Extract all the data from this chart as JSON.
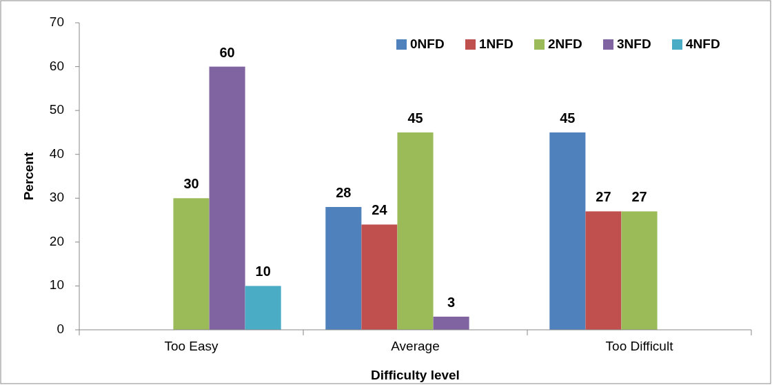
{
  "chart_data": {
    "type": "bar",
    "xlabel": "Difficulty level",
    "ylabel": "Percent",
    "categories": [
      "Too Easy",
      "Average",
      "Too Difficult"
    ],
    "series": [
      {
        "name": "0NFD",
        "color": "#4f81bd",
        "values": [
          null,
          28,
          45
        ]
      },
      {
        "name": "1NFD",
        "color": "#c0504d",
        "values": [
          null,
          24,
          27
        ]
      },
      {
        "name": "2NFD",
        "color": "#9bbb59",
        "values": [
          30,
          45,
          27
        ]
      },
      {
        "name": "3NFD",
        "color": "#8064a2",
        "values": [
          60,
          3,
          null
        ]
      },
      {
        "name": "4NFD",
        "color": "#4bacc6",
        "values": [
          10,
          null,
          null
        ]
      }
    ],
    "ylim": [
      0,
      70
    ],
    "yticks": [
      0,
      10,
      20,
      30,
      40,
      50,
      60,
      70
    ],
    "data_labels": true,
    "legend": "top right",
    "grid": false
  }
}
